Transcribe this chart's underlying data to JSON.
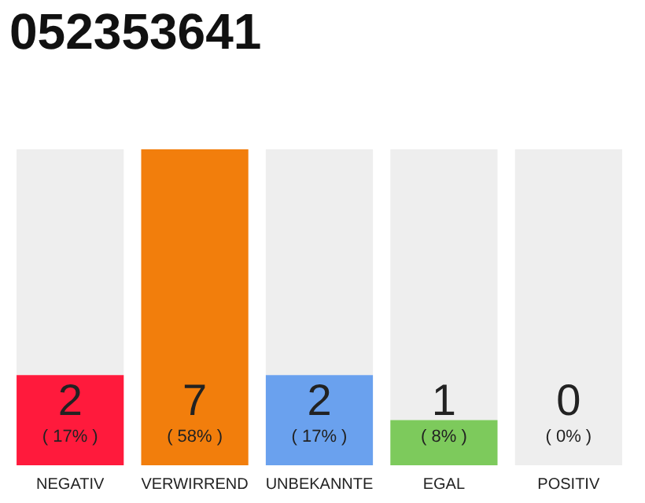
{
  "chart_data": {
    "type": "bar",
    "title": "052353641",
    "categories": [
      "NEGATIV",
      "VERWIRREND",
      "UNBEKANNTE",
      "EGAL",
      "POSITIV"
    ],
    "stacked": true,
    "series": [
      {
        "colors": [
          "#ff1a3c",
          "#f27e0c",
          "#6aa1ee",
          "#7dca5c",
          "#dddddd"
        ],
        "values": [
          2,
          7,
          2,
          1,
          0
        ],
        "value_labels": [
          "2",
          "7",
          "2",
          "1",
          null
        ]
      },
      {
        "color": "#eeeeee",
        "values": [
          5,
          0,
          5,
          6,
          7
        ]
      }
    ],
    "grid": false,
    "legend": false,
    "annotations": [
      "( 17% )",
      "( 58% )",
      "( 17% )",
      "( 8% )",
      "( 0% )",
      {
        "text": "0",
        "x": "POSITIV",
        "y": 0
      }
    ]
  }
}
